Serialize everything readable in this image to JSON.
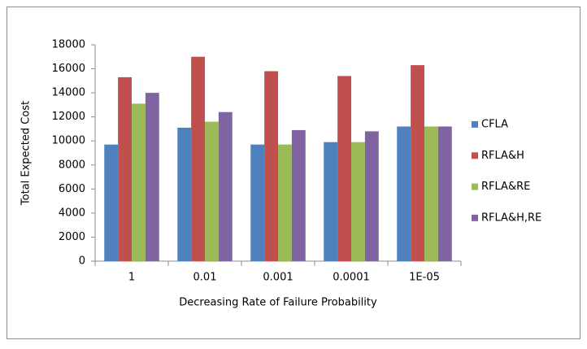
{
  "chart_data": {
    "type": "bar",
    "categories": [
      "1",
      "0.01",
      "0.001",
      "0.0001",
      "1E-05"
    ],
    "series": [
      {
        "name": "CFLA",
        "color": "#4f81bd",
        "values": [
          9700,
          11100,
          9700,
          9900,
          11200
        ]
      },
      {
        "name": "RFLA&H",
        "color": "#c0504d",
        "values": [
          15300,
          17000,
          15800,
          15400,
          16300
        ]
      },
      {
        "name": "RFLA&RE",
        "color": "#9bbb59",
        "values": [
          13100,
          11600,
          9700,
          9900,
          11200
        ]
      },
      {
        "name": "RFLA&H,RE",
        "color": "#8064a2",
        "values": [
          14000,
          12400,
          10900,
          10800,
          11200
        ]
      }
    ],
    "x_label": "Decreasing Rate of Failure Probability",
    "y_label": "Total Expected Cost",
    "ylim": [
      0,
      18000
    ],
    "yticks": [
      0,
      2000,
      4000,
      6000,
      8000,
      10000,
      12000,
      14000,
      16000,
      18000
    ],
    "grid": false,
    "legend": "right"
  }
}
